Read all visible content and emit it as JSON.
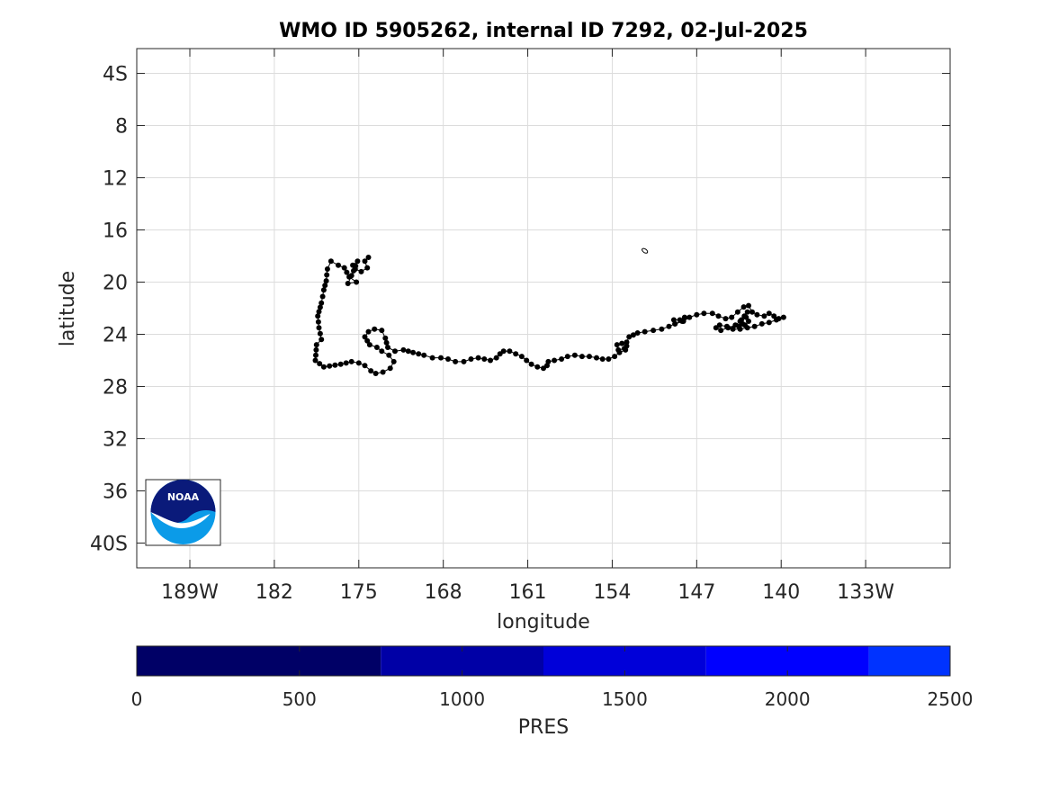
{
  "chart_data": {
    "type": "scatter",
    "title": "WMO ID 5905262, internal ID 7292, 02-Jul-2025",
    "xlabel": "longitude",
    "ylabel": "latitude",
    "x_ticks": [
      {
        "value": -189,
        "label": "189W"
      },
      {
        "value": -182,
        "label": "182"
      },
      {
        "value": -175,
        "label": "175"
      },
      {
        "value": -168,
        "label": "168"
      },
      {
        "value": -161,
        "label": "161"
      },
      {
        "value": -154,
        "label": "154"
      },
      {
        "value": -147,
        "label": "147"
      },
      {
        "value": -140,
        "label": "140"
      },
      {
        "value": -133,
        "label": "133W"
      }
    ],
    "y_ticks": [
      {
        "value": -4,
        "label": "4S"
      },
      {
        "value": -8,
        "label": "8"
      },
      {
        "value": -12,
        "label": "12"
      },
      {
        "value": -16,
        "label": "16"
      },
      {
        "value": -20,
        "label": "20"
      },
      {
        "value": -24,
        "label": "24"
      },
      {
        "value": -28,
        "label": "28"
      },
      {
        "value": -32,
        "label": "32"
      },
      {
        "value": -36,
        "label": "36"
      },
      {
        "value": -40,
        "label": "40S"
      }
    ],
    "xlim": [
      -193.4,
      -126
    ],
    "ylim": [
      -41.9,
      -2.1
    ],
    "grid": true,
    "path_lonlat": [
      [
        -174.2,
        -18.1
      ],
      [
        -174.5,
        -18.4
      ],
      [
        -174.3,
        -18.9
      ],
      [
        -174.8,
        -19.2
      ],
      [
        -175.3,
        -19.0
      ],
      [
        -175.5,
        -18.7
      ],
      [
        -175.1,
        -18.4
      ],
      [
        -175.6,
        -19.5
      ],
      [
        -175.9,
        -20.1
      ],
      [
        -175.2,
        -20.0
      ],
      [
        -175.8,
        -19.6
      ],
      [
        -176.2,
        -18.9
      ],
      [
        -176.7,
        -18.7
      ],
      [
        -177.3,
        -18.4
      ],
      [
        -177.6,
        -19.0
      ],
      [
        -177.7,
        -19.9
      ],
      [
        -177.9,
        -20.6
      ],
      [
        -178.1,
        -21.6
      ],
      [
        -178.4,
        -22.6
      ],
      [
        -178.3,
        -23.5
      ],
      [
        -178.1,
        -24.4
      ],
      [
        -178.5,
        -24.8
      ],
      [
        -178.6,
        -26.0
      ],
      [
        -177.9,
        -26.5
      ],
      [
        -176.5,
        -26.3
      ],
      [
        -175.6,
        -26.1
      ],
      [
        -175.0,
        -26.2
      ],
      [
        -174.5,
        -26.4
      ],
      [
        -174.0,
        -26.8
      ],
      [
        -173.6,
        -27.0
      ],
      [
        -173.0,
        -26.9
      ],
      [
        -172.4,
        -26.6
      ],
      [
        -172.1,
        -26.1
      ],
      [
        -172.5,
        -25.6
      ],
      [
        -173.1,
        -25.3
      ],
      [
        -173.5,
        -25.0
      ],
      [
        -174.1,
        -24.8
      ],
      [
        -174.5,
        -24.2
      ],
      [
        -174.2,
        -23.8
      ],
      [
        -173.7,
        -23.6
      ],
      [
        -173.1,
        -23.7
      ],
      [
        -172.8,
        -24.3
      ],
      [
        -172.6,
        -25.0
      ],
      [
        -172.0,
        -25.3
      ],
      [
        -171.3,
        -25.2
      ],
      [
        -170.5,
        -25.4
      ],
      [
        -169.6,
        -25.6
      ],
      [
        -168.9,
        -25.8
      ],
      [
        -168.2,
        -25.8
      ],
      [
        -167.6,
        -25.9
      ],
      [
        -167.0,
        -26.1
      ],
      [
        -166.3,
        -26.1
      ],
      [
        -165.7,
        -25.9
      ],
      [
        -165.1,
        -25.8
      ],
      [
        -164.6,
        -25.9
      ],
      [
        -164.1,
        -26.0
      ],
      [
        -163.6,
        -25.8
      ],
      [
        -163.3,
        -25.5
      ],
      [
        -163.0,
        -25.3
      ],
      [
        -162.5,
        -25.3
      ],
      [
        -162.0,
        -25.5
      ],
      [
        -161.5,
        -25.7
      ],
      [
        -161.1,
        -26.0
      ],
      [
        -160.7,
        -26.3
      ],
      [
        -160.2,
        -26.5
      ],
      [
        -159.7,
        -26.6
      ],
      [
        -159.4,
        -26.4
      ],
      [
        -159.3,
        -26.1
      ],
      [
        -158.8,
        -26.0
      ],
      [
        -158.2,
        -25.9
      ],
      [
        -157.7,
        -25.7
      ],
      [
        -157.1,
        -25.6
      ],
      [
        -156.5,
        -25.7
      ],
      [
        -155.9,
        -25.7
      ],
      [
        -155.3,
        -25.8
      ],
      [
        -154.8,
        -25.9
      ],
      [
        -154.3,
        -25.9
      ],
      [
        -153.8,
        -25.7
      ],
      [
        -153.4,
        -25.4
      ],
      [
        -152.9,
        -25.2
      ],
      [
        -152.8,
        -24.9
      ],
      [
        -153.2,
        -24.7
      ],
      [
        -153.6,
        -24.8
      ],
      [
        -153.5,
        -25.2
      ],
      [
        -153.0,
        -25.1
      ],
      [
        -152.8,
        -24.6
      ],
      [
        -152.6,
        -24.2
      ],
      [
        -151.9,
        -23.9
      ],
      [
        -151.3,
        -23.8
      ],
      [
        -150.6,
        -23.7
      ],
      [
        -149.9,
        -23.6
      ],
      [
        -149.3,
        -23.4
      ],
      [
        -148.8,
        -23.2
      ],
      [
        -148.2,
        -23.0
      ],
      [
        -148.0,
        -22.7
      ],
      [
        -148.4,
        -22.9
      ],
      [
        -148.9,
        -22.9
      ],
      [
        -148.8,
        -23.2
      ],
      [
        -148.1,
        -23.0
      ],
      [
        -147.6,
        -22.7
      ],
      [
        -147.0,
        -22.5
      ],
      [
        -146.4,
        -22.4
      ],
      [
        -145.7,
        -22.4
      ],
      [
        -145.2,
        -22.6
      ],
      [
        -144.6,
        -22.8
      ],
      [
        -144.1,
        -22.7
      ],
      [
        -143.6,
        -22.3
      ],
      [
        -143.1,
        -21.9
      ],
      [
        -142.7,
        -21.8
      ],
      [
        -142.4,
        -22.3
      ],
      [
        -142.0,
        -22.5
      ],
      [
        -141.4,
        -22.6
      ],
      [
        -141.0,
        -22.4
      ],
      [
        -140.6,
        -22.6
      ],
      [
        -140.2,
        -22.8
      ],
      [
        -139.8,
        -22.7
      ],
      [
        -140.4,
        -22.9
      ],
      [
        -141.0,
        -23.1
      ],
      [
        -141.6,
        -23.2
      ],
      [
        -142.2,
        -23.4
      ],
      [
        -142.8,
        -23.5
      ],
      [
        -143.4,
        -23.6
      ],
      [
        -144.0,
        -23.6
      ],
      [
        -144.5,
        -23.4
      ],
      [
        -145.1,
        -23.3
      ],
      [
        -145.4,
        -23.5
      ],
      [
        -145.0,
        -23.7
      ],
      [
        -144.4,
        -23.5
      ],
      [
        -143.8,
        -23.3
      ],
      [
        -143.4,
        -23.0
      ],
      [
        -143.2,
        -23.2
      ],
      [
        -143.5,
        -23.4
      ],
      [
        -143.0,
        -23.3
      ],
      [
        -142.7,
        -23.0
      ],
      [
        -142.9,
        -22.7
      ],
      [
        -143.3,
        -22.9
      ],
      [
        -142.8,
        -22.3
      ]
    ],
    "island_lonlat": [
      -151.3,
      -17.6
    ],
    "colorbar": {
      "label": "PRES",
      "range": [
        0,
        2500
      ],
      "tick_values": [
        0,
        500,
        1000,
        1500,
        2000,
        2500
      ],
      "bands": [
        {
          "from": 0,
          "to": 750,
          "color": "#000066"
        },
        {
          "from": 750,
          "to": 1250,
          "color": "#0000a6"
        },
        {
          "from": 1250,
          "to": 1750,
          "color": "#0000d9"
        },
        {
          "from": 1750,
          "to": 2250,
          "color": "#0000ff"
        },
        {
          "from": 2250,
          "to": 2500,
          "color": "#0033ff"
        }
      ]
    },
    "marker_color": "#000000"
  },
  "logo": {
    "text": "NOAA",
    "outer_color": "#0b9be8",
    "inner_color": "#0a1a7a"
  }
}
